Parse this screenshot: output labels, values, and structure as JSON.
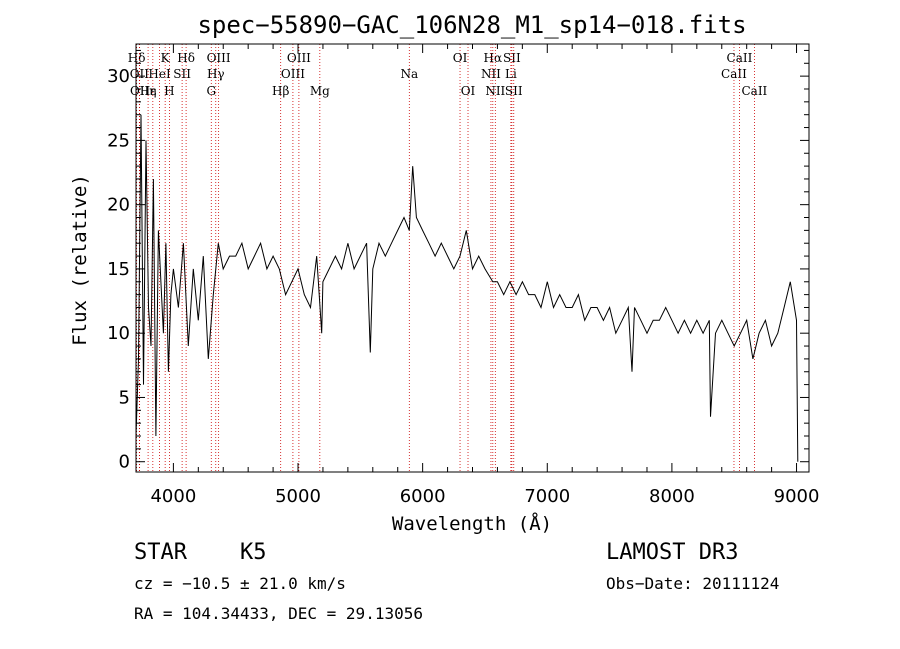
{
  "chart_data": {
    "type": "line",
    "title": "spec−55890−GAC_106N28_M1_sp14−018.fits",
    "xlabel": "Wavelength (Å)",
    "ylabel": "Flux (relative)",
    "xlim": [
      3700,
      9100
    ],
    "ylim": [
      -0.8,
      32.5
    ],
    "x_ticks": [
      4000,
      5000,
      6000,
      7000,
      8000,
      9000
    ],
    "y_ticks": [
      0,
      5,
      10,
      15,
      20,
      25,
      30
    ],
    "series": [
      {
        "name": "flux",
        "x": [
          3700,
          3720,
          3740,
          3760,
          3780,
          3800,
          3820,
          3840,
          3860,
          3880,
          3900,
          3920,
          3940,
          3960,
          3980,
          4000,
          4040,
          4080,
          4120,
          4160,
          4200,
          4240,
          4280,
          4320,
          4360,
          4400,
          4450,
          4500,
          4550,
          4600,
          4650,
          4700,
          4750,
          4800,
          4850,
          4900,
          4950,
          5000,
          5050,
          5100,
          5150,
          5190,
          5200,
          5250,
          5300,
          5350,
          5400,
          5450,
          5500,
          5550,
          5580,
          5600,
          5650,
          5700,
          5750,
          5800,
          5850,
          5893,
          5920,
          5950,
          6000,
          6050,
          6100,
          6150,
          6200,
          6250,
          6300,
          6350,
          6400,
          6450,
          6500,
          6563,
          6600,
          6650,
          6700,
          6750,
          6800,
          6850,
          6900,
          6950,
          7000,
          7050,
          7100,
          7150,
          7200,
          7250,
          7300,
          7350,
          7400,
          7450,
          7500,
          7550,
          7600,
          7650,
          7680,
          7700,
          7750,
          7800,
          7850,
          7900,
          7950,
          8000,
          8050,
          8100,
          8150,
          8200,
          8250,
          8300,
          8310,
          8350,
          8400,
          8450,
          8500,
          8550,
          8600,
          8650,
          8700,
          8750,
          8800,
          8850,
          8900,
          8950,
          9000,
          9010
        ],
        "values": [
          2,
          8,
          27,
          6,
          25,
          12,
          9,
          22,
          2,
          18,
          14,
          10,
          17,
          7,
          13,
          15,
          12,
          17,
          9,
          15,
          11,
          16,
          8,
          13,
          17,
          15,
          16,
          16,
          17,
          15,
          16,
          17,
          15,
          16,
          15,
          13,
          14,
          15,
          13,
          12,
          16,
          10,
          14,
          15,
          16,
          15,
          17,
          15,
          16,
          17,
          8.5,
          15,
          17,
          16,
          17,
          18,
          19,
          18,
          23,
          19,
          18,
          17,
          16,
          17,
          16,
          15,
          16,
          18,
          15,
          16,
          15,
          14,
          14,
          13,
          14,
          13,
          14,
          13,
          13,
          12,
          14,
          12,
          13,
          12,
          12,
          13,
          11,
          12,
          12,
          11,
          12,
          10,
          11,
          12,
          7,
          12,
          11,
          10,
          11,
          11,
          12,
          11,
          10,
          11,
          10,
          11,
          10,
          11,
          3.5,
          10,
          11,
          10,
          9,
          10,
          11,
          8,
          10,
          11,
          9,
          10,
          12,
          14,
          11,
          0
        ]
      }
    ],
    "lines": [
      {
        "label": "Hδ",
        "x": 3705,
        "row": 1
      },
      {
        "label": "OII",
        "x": 3727,
        "row": 2
      },
      {
        "label": "OII",
        "x": 3729,
        "row": 3
      },
      {
        "label": "Hε",
        "x": 3797,
        "row": 3
      },
      {
        "label": "HeI",
        "x": 3889,
        "row": 2
      },
      {
        "label": "K",
        "x": 3934,
        "row": 1
      },
      {
        "label": "η",
        "x": 3835,
        "row": 3
      },
      {
        "label": "H",
        "x": 3968,
        "row": 3
      },
      {
        "label": "SII",
        "x": 4070,
        "row": 2
      },
      {
        "label": "Hδ",
        "x": 4102,
        "row": 1
      },
      {
        "label": "OIII",
        "x": 4363,
        "row": 1
      },
      {
        "label": "Hγ",
        "x": 4340,
        "row": 2
      },
      {
        "label": "G",
        "x": 4304,
        "row": 3
      },
      {
        "label": "Hβ",
        "x": 4861,
        "row": 3
      },
      {
        "label": "OIII",
        "x": 4959,
        "row": 2
      },
      {
        "label": "OIII",
        "x": 5007,
        "row": 1
      },
      {
        "label": "Mg",
        "x": 5175,
        "row": 3
      },
      {
        "label": "Na",
        "x": 5893,
        "row": 2
      },
      {
        "label": "OI",
        "x": 6300,
        "row": 1
      },
      {
        "label": "OI",
        "x": 6364,
        "row": 3
      },
      {
        "label": "Hα",
        "x": 6563,
        "row": 1
      },
      {
        "label": "NII",
        "x": 6548,
        "row": 2
      },
      {
        "label": "NII",
        "x": 6583,
        "row": 3
      },
      {
        "label": "SII",
        "x": 6716,
        "row": 1
      },
      {
        "label": "Li",
        "x": 6708,
        "row": 2
      },
      {
        "label": "SII",
        "x": 6731,
        "row": 3
      },
      {
        "label": "CaII",
        "x": 8498,
        "row": 2
      },
      {
        "label": "CaII",
        "x": 8542,
        "row": 1
      },
      {
        "label": "CaII",
        "x": 8662,
        "row": 3
      }
    ]
  },
  "info": {
    "class": "STAR",
    "subclass": "K5",
    "survey": "LAMOST DR3",
    "cz": "cz = −10.5 ± 21.0 km/s",
    "obs_date": "Obs−Date: 20111124",
    "coords": "RA = 104.34433, DEC =  29.13056"
  },
  "colors": {
    "axis": "#000000",
    "line_marker": "#cc0000"
  }
}
